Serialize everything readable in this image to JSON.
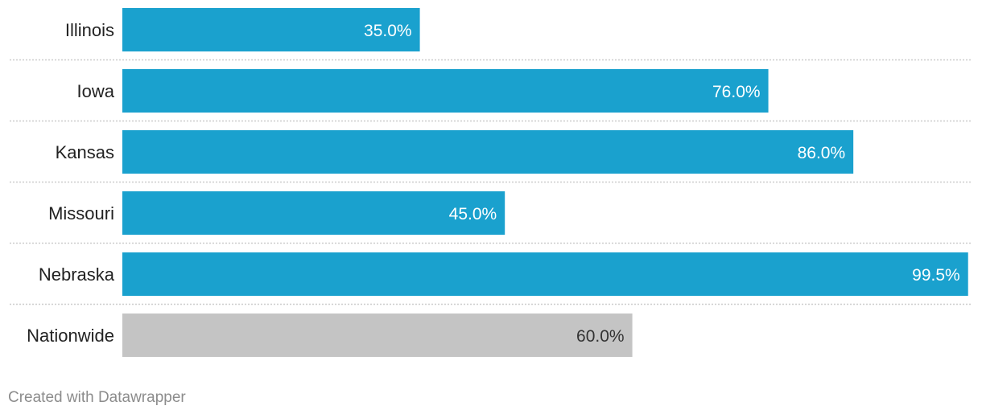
{
  "chart_data": {
    "type": "bar",
    "orientation": "horizontal",
    "categories": [
      "Illinois",
      "Iowa",
      "Kansas",
      "Missouri",
      "Nebraska",
      "Nationwide"
    ],
    "values": [
      35.0,
      76.0,
      86.0,
      45.0,
      99.5,
      60.0
    ],
    "value_labels": [
      "35.0%",
      "76.0%",
      "86.0%",
      "45.0%",
      "99.5%",
      "60.0%"
    ],
    "xlim": [
      0,
      100
    ],
    "title": "",
    "xlabel": "",
    "ylabel": "",
    "grid": false,
    "legend": "none",
    "colors": {
      "default": "#1aa1ce",
      "highlight": "#c4c4c4",
      "separator": "#cccccc"
    },
    "highlight_categories": [
      "Nationwide"
    ]
  },
  "footer": {
    "credit": "Created with Datawrapper"
  }
}
